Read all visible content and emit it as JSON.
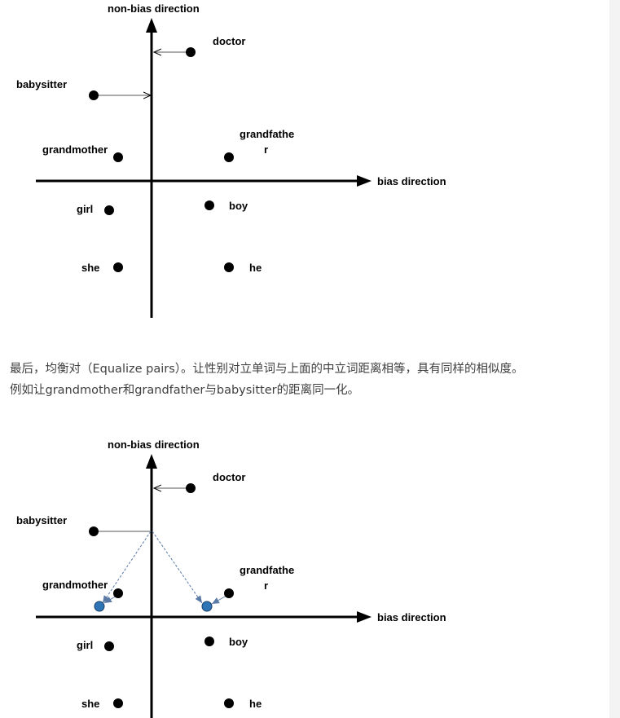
{
  "diagram1": {
    "y_axis_label": "non-bias direction",
    "x_axis_label": "bias direction",
    "words": {
      "doctor": "doctor",
      "babysitter": "babysitter",
      "grandmother": "grandmother",
      "grandfather_line1": "grandfathe",
      "grandfather_line2": "r",
      "girl": "girl",
      "boy": "boy",
      "she": "she",
      "he": "he"
    }
  },
  "paragraph": {
    "line1": "最后，均衡对（Equalize pairs）。让性别对立单词与上面的中立词距离相等，具有同样的相似度。",
    "line2": "例如让grandmother和grandfather与babysitter的距离同一化。"
  },
  "diagram2": {
    "y_axis_label": "non-bias direction",
    "x_axis_label": "bias direction",
    "words": {
      "doctor": "doctor",
      "babysitter": "babysitter",
      "grandmother": "grandmother",
      "grandfather_line1": "grandfathe",
      "grandfather_line2": "r",
      "girl": "girl",
      "boy": "boy",
      "she": "she",
      "he": "he"
    },
    "colors": {
      "equalized_point": "#2e75b6",
      "dashed_arrow": "#5b7ba6"
    }
  }
}
